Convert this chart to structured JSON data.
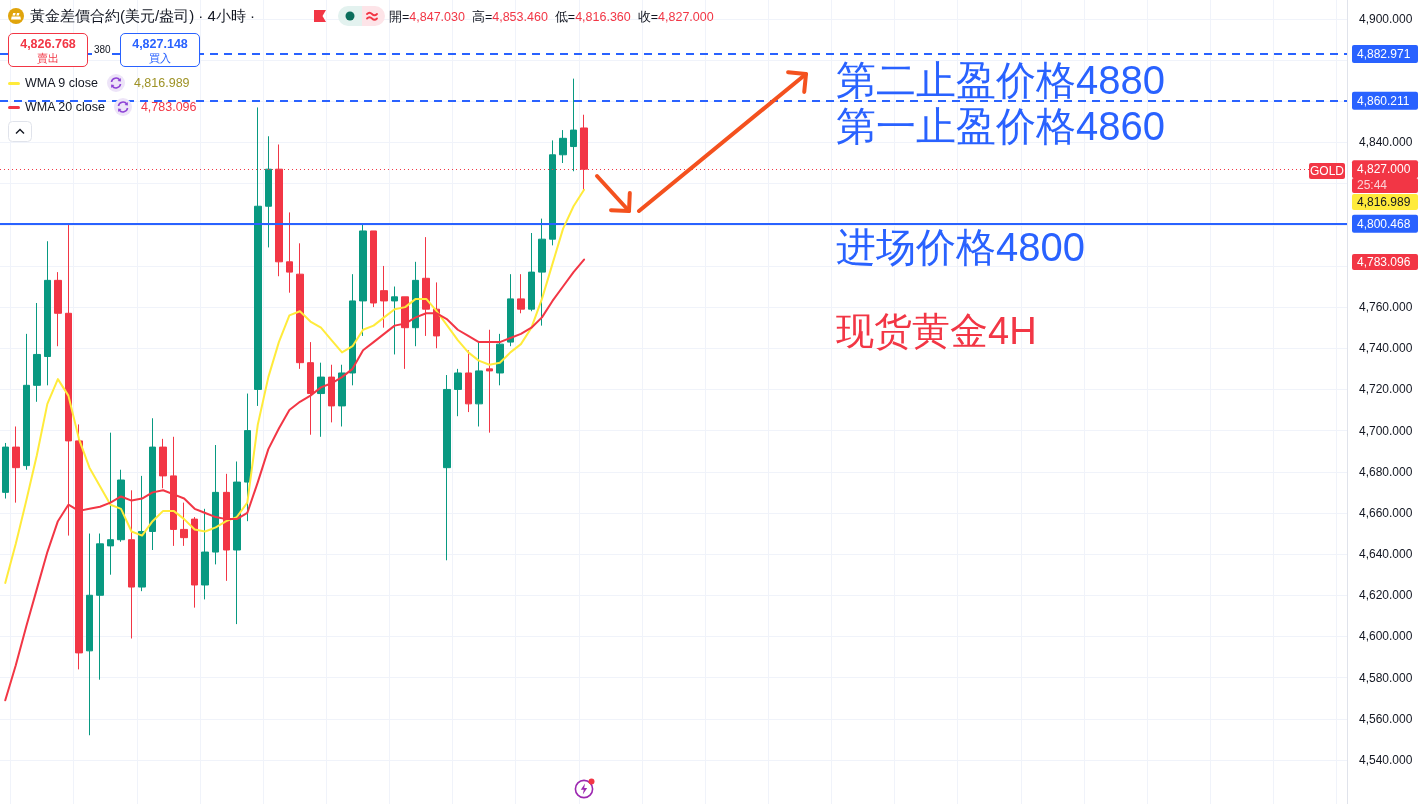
{
  "chart_data": {
    "type": "candlestick",
    "title": "黃金差價合約(美元/盎司) · 4小時 ·",
    "categories": [
      null,
      null,
      null,
      null,
      null,
      null,
      null,
      null,
      null,
      null,
      null,
      null,
      null,
      null,
      null,
      null,
      null,
      null,
      null,
      null,
      null,
      null,
      null,
      null,
      null,
      null,
      null,
      null,
      null,
      null,
      null,
      null,
      null,
      null,
      null,
      null,
      null,
      null,
      null,
      null,
      null,
      null,
      null,
      null,
      null,
      null,
      null,
      null,
      null,
      null,
      null,
      null,
      null,
      null,
      null,
      null,
      null,
      null,
      null,
      null,
      null,
      null,
      null,
      null,
      null,
      null,
      null,
      null,
      null,
      null,
      null,
      null,
      null,
      null,
      null,
      null,
      null,
      null,
      null,
      null,
      null,
      null,
      null,
      null,
      null,
      null,
      null,
      null,
      null,
      null,
      null,
      null,
      null,
      null,
      null,
      null,
      null,
      null,
      null,
      null,
      null,
      null,
      null,
      null,
      null,
      null,
      null,
      null,
      null,
      null,
      null,
      null,
      null,
      null,
      null,
      null,
      null,
      null,
      null,
      null,
      null,
      null,
      null,
      null,
      null,
      null,
      null,
      null
    ],
    "ohlc": [
      [
        4670,
        4694,
        4667,
        4692
      ],
      [
        4692,
        4702,
        4665,
        4682
      ],
      [
        4683,
        4747,
        4681,
        4722
      ],
      [
        4722,
        4762,
        4714,
        4737
      ],
      [
        4736,
        4792,
        4722,
        4773
      ],
      [
        4773,
        4777,
        4741,
        4757
      ],
      [
        4757,
        4800,
        4649,
        4695
      ],
      [
        4695,
        4703,
        4584,
        4592
      ],
      [
        4593,
        4650,
        4552,
        4620
      ],
      [
        4620,
        4650,
        4579,
        4645
      ],
      [
        4644,
        4699,
        4630,
        4647
      ],
      [
        4647,
        4681,
        4646,
        4676
      ],
      [
        4647,
        4671,
        4599,
        4624
      ],
      [
        4624,
        4678,
        4622,
        4651
      ],
      [
        4651,
        4706,
        4642,
        4692
      ],
      [
        4692,
        4696,
        4672,
        4678
      ],
      [
        4678,
        4697,
        4644,
        4652
      ],
      [
        4652,
        4665,
        4644,
        4648
      ],
      [
        4657,
        4658,
        4614,
        4625
      ],
      [
        4625,
        4662,
        4618,
        4641
      ],
      [
        4641,
        4693,
        4635,
        4670
      ],
      [
        4670,
        4679,
        4627,
        4642
      ],
      [
        4642,
        4685,
        4606,
        4675
      ],
      [
        4675,
        4718,
        4656,
        4700
      ],
      [
        4720,
        4857,
        4712,
        4809
      ],
      [
        4809,
        4843,
        4789,
        4827
      ],
      [
        4827,
        4839,
        4775,
        4782
      ],
      [
        4782,
        4806,
        4767,
        4777
      ],
      [
        4776,
        4791,
        4730,
        4733
      ],
      [
        4733,
        4743,
        4698,
        4718
      ],
      [
        4718,
        4733,
        4697,
        4726
      ],
      [
        4726,
        4732,
        4704,
        4712
      ],
      [
        4712,
        4732,
        4702,
        4728
      ],
      [
        4728,
        4776,
        4722,
        4763
      ],
      [
        4763,
        4800,
        4746,
        4797
      ],
      [
        4797,
        4797,
        4760,
        4762
      ],
      [
        4768,
        4780,
        4750,
        4763
      ],
      [
        4763,
        4770,
        4737,
        4765
      ],
      [
        4765,
        4765,
        4730,
        4750
      ],
      [
        4750,
        4782,
        4741,
        4773
      ],
      [
        4774,
        4794,
        4746,
        4759
      ],
      [
        4759,
        4772,
        4740,
        4746
      ],
      [
        4682,
        4727,
        4637,
        4720
      ],
      [
        4720,
        4730,
        4707,
        4728
      ],
      [
        4728,
        4739,
        4709,
        4713
      ],
      [
        4713,
        4743,
        4702,
        4729
      ],
      [
        4730,
        4749,
        4699,
        4729
      ],
      [
        4728,
        4747,
        4722,
        4742
      ],
      [
        4743,
        4776,
        4741,
        4764
      ],
      [
        4764,
        4776,
        4757,
        4759
      ],
      [
        4759,
        4796,
        4758,
        4777
      ],
      [
        4777,
        4803,
        4751,
        4793
      ],
      [
        4793,
        4841,
        4790,
        4834
      ],
      [
        4834,
        4846,
        4830,
        4842
      ],
      [
        4838,
        4871,
        4826,
        4846
      ],
      [
        4847.03,
        4853.46,
        4816.36,
        4827.0
      ],
      null,
      null,
      null,
      null,
      null,
      null,
      null,
      null,
      null,
      null,
      null,
      null,
      null,
      null,
      null,
      null,
      null,
      null,
      null,
      null,
      null,
      null,
      null,
      null,
      null,
      null,
      null,
      null,
      null,
      null,
      null,
      null,
      null,
      null,
      null,
      null,
      null,
      null,
      null,
      null,
      null,
      null,
      null,
      null,
      null,
      null,
      null,
      null,
      null,
      null,
      null,
      null,
      null,
      null,
      null,
      null,
      null,
      null,
      null,
      null,
      null,
      null,
      null,
      null,
      null,
      null,
      null,
      null,
      null,
      null,
      null,
      null
    ],
    "colors": [
      "#089981",
      "#f23645",
      "#089981",
      "#089981",
      "#089981",
      "#f23645",
      "#f23645",
      "#f23645",
      "#089981",
      "#089981",
      "#089981",
      "#089981",
      "#f23645",
      "#089981",
      "#089981",
      "#f23645",
      "#f23645",
      "#f23645",
      "#f23645",
      "#089981",
      "#089981",
      "#f23645",
      "#089981",
      "#089981",
      "#089981",
      "#089981",
      "#f23645",
      "#f23645",
      "#f23645",
      "#f23645",
      "#089981",
      "#f23645",
      "#089981",
      "#089981",
      "#089981",
      "#f23645",
      "#f23645",
      "#089981",
      "#f23645",
      "#089981",
      "#f23645",
      "#f23645",
      "#089981",
      "#089981",
      "#f23645",
      "#089981",
      "#f23645",
      "#089981",
      "#089981",
      "#f23645",
      "#089981",
      "#089981",
      "#089981",
      "#089981",
      "#089981",
      "#f23645",
      null,
      null,
      null,
      null,
      null,
      null,
      null,
      null,
      null,
      null,
      null,
      null,
      null,
      null,
      null,
      null,
      null,
      null,
      null,
      null,
      null,
      null,
      null,
      null,
      null,
      null,
      null,
      null,
      null,
      null,
      null,
      null,
      null,
      null,
      null,
      null,
      null,
      null,
      null,
      null,
      null,
      null,
      null,
      null,
      null,
      null,
      null,
      null,
      null,
      null,
      null,
      null,
      null,
      null,
      null,
      null,
      null,
      null,
      null,
      null,
      null,
      null,
      null,
      null,
      null,
      null,
      null,
      null,
      null,
      null,
      null,
      null
    ],
    "series": [
      {
        "name": "WMA 9 close",
        "type": "line",
        "color": "#ffeb3b",
        "values": [
          4626,
          4645,
          4666,
          4688,
          4713,
          4725,
          4717,
          4696,
          4682,
          4673,
          4664,
          4662,
          4651,
          4649,
          4656,
          4661,
          4661,
          4657,
          4652,
          4651,
          4653,
          4656,
          4658,
          4665,
          4703,
          4726,
          4743,
          4756,
          4758,
          4753,
          4750,
          4744,
          4738,
          4741,
          4749,
          4751,
          4755,
          4759,
          4760,
          4764,
          4764,
          4758,
          4751,
          4744,
          4738,
          4734,
          4732,
          4733,
          4738,
          4742,
          4750,
          4764,
          4781,
          4798,
          4809,
          4816.989,
          null,
          null,
          null,
          null,
          null,
          null,
          null,
          null,
          null,
          null,
          null,
          null,
          null,
          null,
          null,
          null,
          null,
          null,
          null,
          null,
          null,
          null,
          null,
          null,
          null,
          null,
          null,
          null,
          null,
          null,
          null,
          null,
          null,
          null,
          null,
          null,
          null,
          null,
          null,
          null,
          null,
          null,
          null,
          null,
          null,
          null,
          null,
          null,
          null,
          null,
          null,
          null,
          null,
          null,
          null,
          null,
          null,
          null,
          null,
          null,
          null,
          null,
          null,
          null,
          null,
          null,
          null,
          null,
          null,
          null,
          null,
          null
        ]
      },
      {
        "name": "WMA 20 close",
        "type": "line",
        "color": "#f23645",
        "values": [
          4569,
          4586,
          4605,
          4623,
          4641,
          4656,
          4664,
          4661,
          4662,
          4663,
          4665,
          4668,
          4666,
          4667,
          4670,
          4671,
          4669,
          4667,
          4662,
          4660,
          4658,
          4657,
          4657,
          4660,
          4675,
          4691,
          4701,
          4710,
          4714,
          4717,
          4721,
          4723,
          4726,
          4730,
          4739,
          4743,
          4747,
          4751,
          4752,
          4755,
          4757,
          4757,
          4754,
          4749,
          4746,
          4743,
          4743,
          4743,
          4745,
          4747,
          4750,
          4755,
          4763,
          4770,
          4777,
          4783.096,
          null,
          null,
          null,
          null,
          null,
          null,
          null,
          null,
          null,
          null,
          null,
          null,
          null,
          null,
          null,
          null,
          null,
          null,
          null,
          null,
          null,
          null,
          null,
          null,
          null,
          null,
          null,
          null,
          null,
          null,
          null,
          null,
          null,
          null,
          null,
          null,
          null,
          null,
          null,
          null,
          null,
          null,
          null,
          null,
          null,
          null,
          null,
          null,
          null,
          null,
          null,
          null,
          null,
          null,
          null,
          null,
          null,
          null,
          null,
          null,
          null,
          null,
          null,
          null,
          null,
          null,
          null,
          null,
          null,
          null,
          null,
          null
        ]
      }
    ],
    "ylim": [
      4518.6,
      4909.2
    ],
    "yticks": [
      {
        "value": 4540,
        "label": "4,540.000"
      },
      {
        "value": 4560,
        "label": "4,560.000"
      },
      {
        "value": 4580,
        "label": "4,580.000"
      },
      {
        "value": 4600,
        "label": "4,600.000"
      },
      {
        "value": 4620,
        "label": "4,620.000"
      },
      {
        "value": 4640,
        "label": "4,640.000"
      },
      {
        "value": 4660,
        "label": "4,660.000"
      },
      {
        "value": 4680,
        "label": "4,680.000"
      },
      {
        "value": 4700,
        "label": "4,700.000"
      },
      {
        "value": 4720,
        "label": "4,720.000"
      },
      {
        "value": 4740,
        "label": "4,740.000"
      },
      {
        "value": 4760,
        "label": "4,760.000"
      },
      {
        "value": 4780,
        "label": null
      },
      {
        "value": 4800,
        "label": null
      },
      {
        "value": 4820,
        "label": null
      },
      {
        "value": 4840,
        "label": "4,840.000"
      },
      {
        "value": 4860,
        "label": null
      },
      {
        "value": 4880,
        "label": null
      },
      {
        "value": 4900,
        "label": "4,900.000"
      }
    ],
    "ref_lines": [
      {
        "axis": "y",
        "value": 4882.971,
        "label": "4,882.971",
        "color": "#2962ff",
        "line_style": "dashed"
      },
      {
        "axis": "y",
        "value": 4860.211,
        "label": "4,860.211",
        "color": "#2962ff",
        "line_style": "dashed"
      },
      {
        "axis": "y",
        "value": 4827.0,
        "label": "4,827.000",
        "color": "#f23645",
        "line_style": "dotted"
      },
      {
        "axis": "y",
        "value": 4800.468,
        "label": "4,800.468",
        "color": "#2962ff",
        "line_style": "solid"
      }
    ],
    "annotations": [
      "開=4,847.030",
      "高=4,853.460",
      "低=4,816.360",
      "收=4,827.000",
      "4,826.768",
      "賣出",
      "380",
      "4,827.148",
      "買入",
      "4,816.989",
      "4,783.096",
      "4,816.989",
      "4,783.096",
      {
        "text": "GOLD",
        "y": 4827.0
      },
      "25:44",
      {
        "text": "第二止盈价格4880",
        "y": 4882.971
      },
      {
        "text": "第一止盈价格4860",
        "y": 4860.211
      },
      {
        "text": "进场价格4800",
        "y": 4800.468
      },
      "现货黄金4H"
    ],
    "legend": "top left",
    "grid": true,
    "tick_labels": "y",
    "marker": "none"
  }
}
